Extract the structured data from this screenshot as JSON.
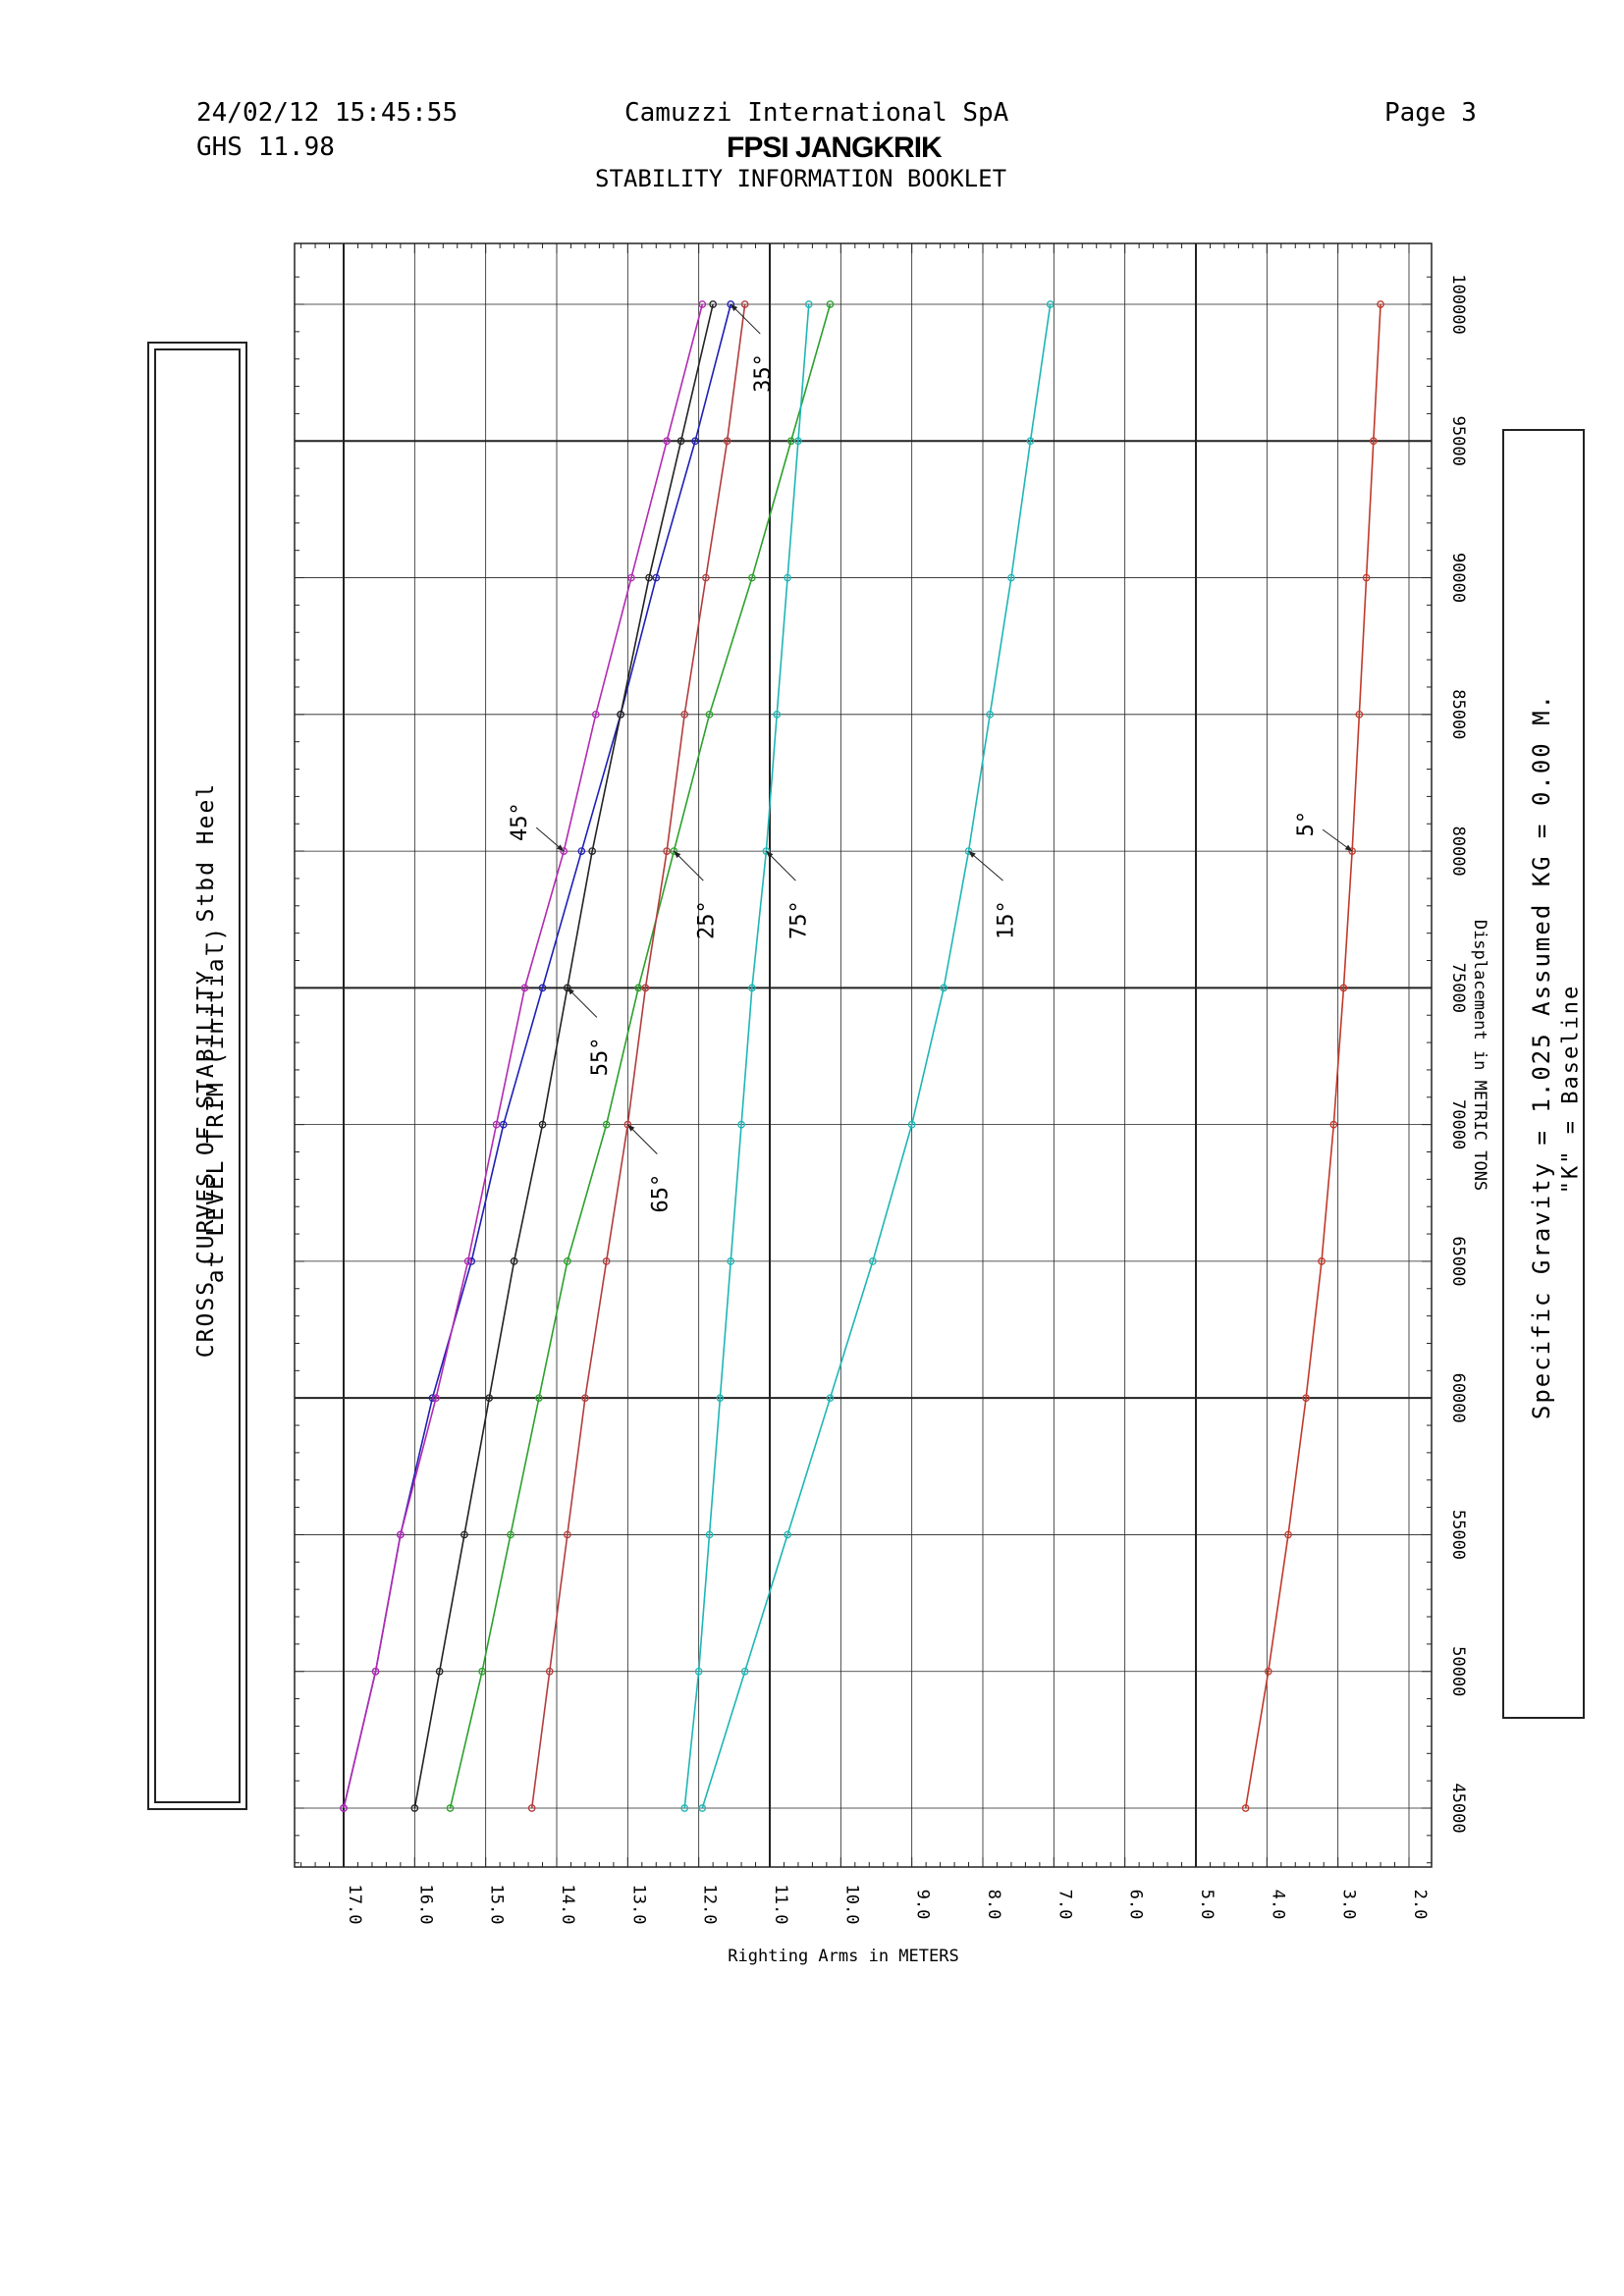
{
  "header": {
    "datetime": "24/02/12 15:45:55",
    "version": "GHS 11.98",
    "company": "Camuzzi International SpA",
    "project": "FPSI JANGKRIK",
    "booklet": "STABILITY INFORMATION BOOKLET",
    "page": "Page 3"
  },
  "left_box": {
    "line1": "CROSS CURVES OF STABILITY - Stbd Heel",
    "line2": "at LEVEL TRIM (initial)"
  },
  "right_box": {
    "line1": "Specific Gravity = 1.025     Assumed KG = 0.00 M.",
    "line2": "\"K\" = Baseline"
  },
  "chart_data": {
    "type": "line",
    "orientation": "rotated",
    "xlabel": "Displacement in METRIC TONS",
    "ylabel": "Righting Arms in METERS",
    "x_ticks": [
      "45000",
      "50000",
      "55000",
      "60000",
      "65000",
      "70000",
      "75000",
      "80000",
      "85000",
      "90000",
      "95000",
      "100000"
    ],
    "y_ticks": [
      "17.0",
      "16.0",
      "15.0",
      "14.0",
      "13.0",
      "12.0",
      "11.0",
      "10.0",
      "9.0",
      "8.0",
      "7.0",
      "6.0",
      "5.0",
      "4.0",
      "3.0",
      "2.0"
    ],
    "xlim": [
      43000,
      101500
    ],
    "ylim": [
      1.7,
      17.7
    ],
    "grid": true,
    "x": [
      45000,
      50000,
      55000,
      60000,
      65000,
      70000,
      75000,
      80000,
      85000,
      90000,
      95000,
      100000
    ],
    "series": [
      {
        "name": "5°",
        "color": "#c0392b",
        "values": [
          4.3,
          3.98,
          3.7,
          3.45,
          3.23,
          3.06,
          2.92,
          2.8,
          2.7,
          2.6,
          2.5,
          2.4
        ]
      },
      {
        "name": "15°",
        "color": "#1fb5b5",
        "values": [
          11.95,
          11.35,
          10.75,
          10.15,
          9.55,
          9.0,
          8.55,
          8.2,
          7.9,
          7.6,
          7.33,
          7.05
        ]
      },
      {
        "name": "25°",
        "color": "#2ca02c",
        "values": [
          15.5,
          15.05,
          14.65,
          14.25,
          13.85,
          13.3,
          12.85,
          12.35,
          11.85,
          11.25,
          10.7,
          10.15
        ]
      },
      {
        "name": "35°",
        "color": "#1f1fb4",
        "values": [
          17.0,
          16.55,
          16.2,
          15.75,
          15.2,
          14.75,
          14.2,
          13.65,
          13.1,
          12.6,
          12.05,
          11.55
        ]
      },
      {
        "name": "45°",
        "color": "#b22ab2",
        "values": [
          17.0,
          16.55,
          16.2,
          15.7,
          15.25,
          14.85,
          14.45,
          13.9,
          13.45,
          12.95,
          12.45,
          11.95
        ]
      },
      {
        "name": "55°",
        "color": "#222222",
        "values": [
          16.0,
          15.65,
          15.3,
          14.95,
          14.6,
          14.2,
          13.85,
          13.5,
          13.1,
          12.7,
          12.25,
          11.8
        ]
      },
      {
        "name": "65°",
        "color": "#b33c3c",
        "values": [
          14.35,
          14.1,
          13.85,
          13.6,
          13.3,
          13.0,
          12.75,
          12.45,
          12.2,
          11.9,
          11.6,
          11.35
        ]
      },
      {
        "name": "75°",
        "color": "#1fb5b5",
        "values": [
          12.2,
          12.0,
          11.85,
          11.7,
          11.55,
          11.4,
          11.25,
          11.05,
          10.9,
          10.75,
          10.6,
          10.45
        ]
      }
    ],
    "labels": [
      "5°",
      "15°",
      "25°",
      "35°",
      "45°",
      "55°",
      "65°",
      "75°"
    ]
  }
}
